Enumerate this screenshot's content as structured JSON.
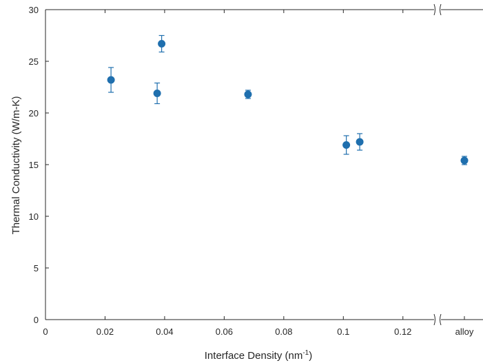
{
  "chart_data": {
    "type": "scatter",
    "title": "",
    "xlabel": "Interface Density (nm",
    "xlabel_sup": "-1",
    "xlabel_suffix": ")",
    "ylabel": "Thermal Conductivity (W/m-K)",
    "xlim": [
      0,
      0.13
    ],
    "ylim": [
      0,
      30
    ],
    "x_axis_break": true,
    "x_ticks": [
      {
        "value": 0,
        "label": "0"
      },
      {
        "value": 0.02,
        "label": "0.02"
      },
      {
        "value": 0.04,
        "label": "0.04"
      },
      {
        "value": 0.06,
        "label": "0.06"
      },
      {
        "value": 0.08,
        "label": "0.08"
      },
      {
        "value": 0.1,
        "label": "0.1"
      },
      {
        "value": 0.12,
        "label": "0.12"
      }
    ],
    "extra_category": {
      "label": "alloy",
      "y": 15.4,
      "err": 0.4
    },
    "y_ticks": [
      0,
      5,
      10,
      15,
      20,
      25,
      30
    ],
    "grid": false,
    "legend": "none",
    "marker_color": "#1f6fae",
    "points": [
      {
        "x": 0.022,
        "y": 23.2,
        "err": 1.2
      },
      {
        "x": 0.0375,
        "y": 21.9,
        "err": 1.0
      },
      {
        "x": 0.039,
        "y": 26.7,
        "err": 0.8
      },
      {
        "x": 0.068,
        "y": 21.8,
        "err": 0.4
      },
      {
        "x": 0.101,
        "y": 16.9,
        "err": 0.9
      },
      {
        "x": 0.1055,
        "y": 17.2,
        "err": 0.8
      }
    ]
  }
}
